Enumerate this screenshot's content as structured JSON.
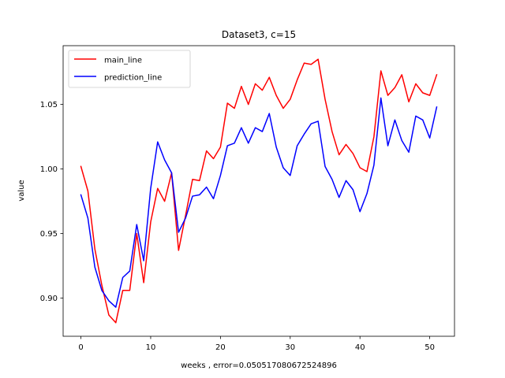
{
  "chart_data": {
    "type": "line",
    "title": "Dataset3, c=15",
    "xlabel": "weeks , error=0.050517080672524896",
    "ylabel": "value",
    "xlim": [
      -2.55,
      53.55
    ],
    "ylim": [
      0.8705,
      1.0955
    ],
    "xticks": [
      0,
      10,
      20,
      30,
      40,
      50
    ],
    "xtick_labels": [
      "0",
      "10",
      "20",
      "30",
      "40",
      "50"
    ],
    "yticks": [
      0.9,
      0.95,
      1.0,
      1.05
    ],
    "ytick_labels": [
      "0.90",
      "0.95",
      "1.00",
      "1.05"
    ],
    "grid": false,
    "legend_position": "top-left",
    "x": [
      0,
      1,
      2,
      3,
      4,
      5,
      6,
      7,
      8,
      9,
      10,
      11,
      12,
      13,
      14,
      15,
      16,
      17,
      18,
      19,
      20,
      21,
      22,
      23,
      24,
      25,
      26,
      27,
      28,
      29,
      30,
      31,
      32,
      33,
      34,
      35,
      36,
      37,
      38,
      39,
      40,
      41,
      42,
      43,
      44,
      45,
      46,
      47,
      48,
      49,
      50,
      51
    ],
    "series": [
      {
        "name": "main_line",
        "color": "#ff0000",
        "values": [
          1.002,
          0.983,
          0.938,
          0.91,
          0.887,
          0.881,
          0.906,
          0.906,
          0.95,
          0.912,
          0.959,
          0.985,
          0.975,
          0.997,
          0.937,
          0.964,
          0.992,
          0.991,
          1.014,
          1.008,
          1.017,
          1.051,
          1.047,
          1.064,
          1.05,
          1.066,
          1.061,
          1.071,
          1.057,
          1.047,
          1.054,
          1.069,
          1.082,
          1.081,
          1.085,
          1.054,
          1.029,
          1.011,
          1.019,
          1.012,
          1.001,
          0.998,
          1.025,
          1.076,
          1.057,
          1.063,
          1.073,
          1.052,
          1.066,
          1.059,
          1.057,
          1.073
        ]
      },
      {
        "name": "prediction_line",
        "color": "#0000ff",
        "values": [
          0.98,
          0.962,
          0.924,
          0.906,
          0.898,
          0.893,
          0.916,
          0.921,
          0.957,
          0.929,
          0.985,
          1.021,
          1.007,
          0.997,
          0.951,
          0.962,
          0.979,
          0.98,
          0.986,
          0.977,
          0.995,
          1.018,
          1.02,
          1.032,
          1.02,
          1.032,
          1.029,
          1.043,
          1.017,
          1.001,
          0.995,
          1.018,
          1.027,
          1.035,
          1.037,
          1.002,
          0.992,
          0.978,
          0.991,
          0.984,
          0.967,
          0.981,
          1.003,
          1.055,
          1.018,
          1.038,
          1.022,
          1.013,
          1.041,
          1.038,
          1.024,
          1.048
        ]
      }
    ]
  }
}
